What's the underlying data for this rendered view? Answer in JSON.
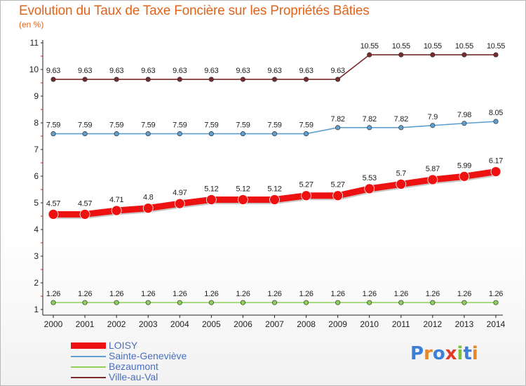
{
  "title": "Evolution du Taux de Taxe Foncière sur les Propriétés Bâties",
  "subtitle": "(en %)",
  "logo": {
    "letters": [
      "P",
      "r",
      "o",
      "x",
      "i",
      "t",
      "i"
    ],
    "colors": [
      "#3d7fd6",
      "#e8862a",
      "#3d7fd6",
      "#e03a2a",
      "#7fbf3f",
      "#3d7fd6",
      "#e8862a"
    ]
  },
  "chart_data": {
    "type": "line",
    "title": "Evolution du Taux de Taxe Foncière sur les Propriétés Bâties",
    "ylabel": "(en %)",
    "xlabel": "",
    "x": [
      "2000",
      "2001",
      "2002",
      "2003",
      "2004",
      "2005",
      "2006",
      "2007",
      "2008",
      "2009",
      "2010",
      "2011",
      "2012",
      "2013",
      "2014"
    ],
    "ylim": [
      1,
      11
    ],
    "yticks": [
      "1",
      "2",
      "3",
      "4",
      "5",
      "6",
      "7",
      "8",
      "9",
      "10",
      "11"
    ],
    "grid": false,
    "legend_position": "bottom-left",
    "series": [
      {
        "name": "LOISY",
        "color": "#ee1111",
        "values": [
          4.57,
          4.57,
          4.71,
          4.8,
          4.97,
          5.12,
          5.12,
          5.12,
          5.27,
          5.27,
          5.53,
          5.7,
          5.87,
          5.99,
          6.17
        ],
        "labels": [
          "4.57",
          "4.57",
          "4.71",
          "4.8",
          "4.97",
          "5.12",
          "5.12",
          "5.12",
          "5.27",
          "5.27",
          "5.53",
          "5.7",
          "5.87",
          "5.99",
          "6.17"
        ]
      },
      {
        "name": "Sainte-Geneviève",
        "color": "#5fa0d0",
        "values": [
          7.59,
          7.59,
          7.59,
          7.59,
          7.59,
          7.59,
          7.59,
          7.59,
          7.59,
          7.82,
          7.82,
          7.82,
          7.9,
          7.98,
          8.05
        ],
        "labels": [
          "7.59",
          "7.59",
          "7.59",
          "7.59",
          "7.59",
          "7.59",
          "7.59",
          "7.59",
          "7.59",
          "7.82",
          "7.82",
          "7.82",
          "7.9",
          "7.98",
          "8.05"
        ]
      },
      {
        "name": "Bezaumont",
        "color": "#8fd05a",
        "values": [
          1.26,
          1.26,
          1.26,
          1.26,
          1.26,
          1.26,
          1.26,
          1.26,
          1.26,
          1.26,
          1.26,
          1.26,
          1.26,
          1.26,
          1.26
        ],
        "labels": [
          "1.26",
          "1.26",
          "1.26",
          "1.26",
          "1.26",
          "1.26",
          "1.26",
          "1.26",
          "1.26",
          "1.26",
          "1.26",
          "1.26",
          "1.26",
          "1.26",
          "1.26"
        ]
      },
      {
        "name": "Ville-au-Val",
        "color": "#7a2a2a",
        "values": [
          9.63,
          9.63,
          9.63,
          9.63,
          9.63,
          9.63,
          9.63,
          9.63,
          9.63,
          9.63,
          10.55,
          10.55,
          10.55,
          10.55,
          10.55
        ],
        "labels": [
          "9.63",
          "9.63",
          "9.63",
          "9.63",
          "9.63",
          "9.63",
          "9.63",
          "9.63",
          "9.63",
          "9.63",
          "10.55",
          "10.55",
          "10.55",
          "10.55",
          "10.55"
        ]
      }
    ]
  }
}
